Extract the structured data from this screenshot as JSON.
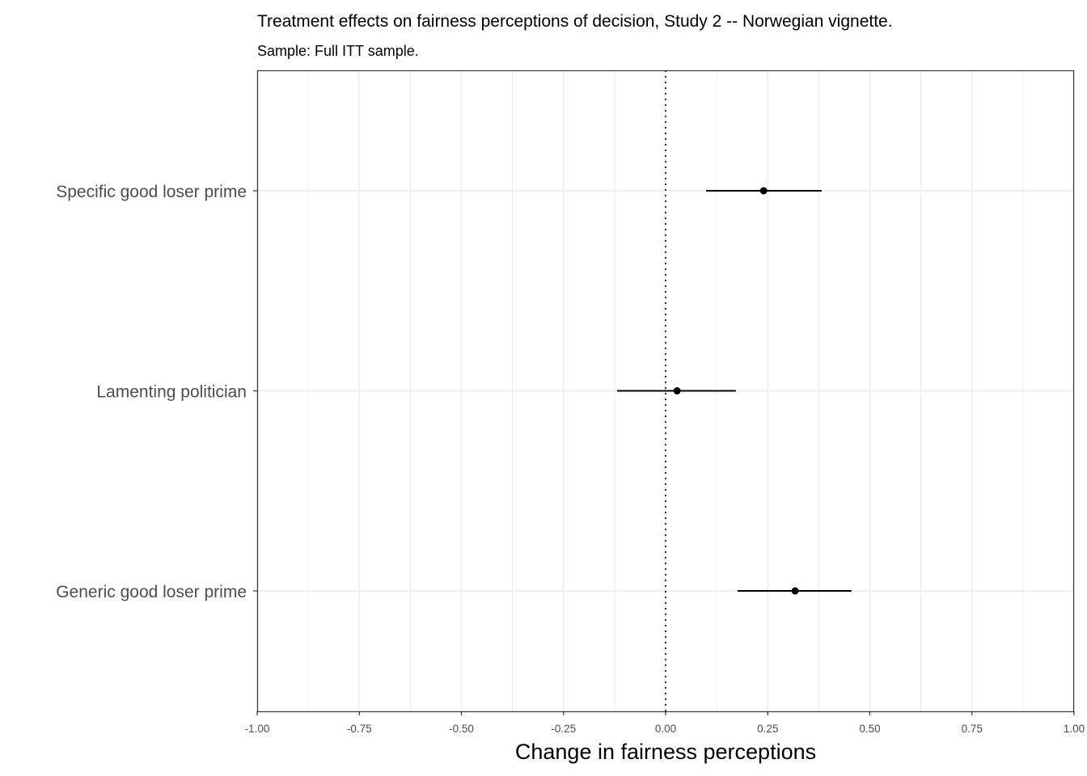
{
  "chart_data": {
    "type": "scatter",
    "subtype": "coefficient-plot-with-horizontal-error-bars",
    "title": "Treatment effects on fairness perceptions of decision, Study 2 -- Norwegian vignette.",
    "subtitle": "Sample: Full ITT sample.",
    "xlabel": "Change in fairness perceptions",
    "ylabel": "",
    "xlim": [
      -1.0,
      1.0
    ],
    "x_ticks": [
      "-1.00",
      "-0.75",
      "-0.50",
      "-0.25",
      "0.00",
      "0.25",
      "0.50",
      "0.75",
      "1.00"
    ],
    "x_tick_values": [
      -1.0,
      -0.75,
      -0.5,
      -0.25,
      0,
      0.25,
      0.5,
      0.75,
      1.0
    ],
    "reference_line": {
      "x": 0,
      "style": "dotted"
    },
    "grid": true,
    "categories": [
      "Specific good loser prime",
      "Lamenting politician",
      "Generic good loser prime"
    ],
    "series": [
      {
        "estimates": [
          0.24,
          0.028,
          0.317
        ],
        "lower": [
          0.099,
          -0.119,
          0.176
        ],
        "upper": [
          0.382,
          0.172,
          0.455
        ]
      }
    ],
    "colors": {
      "marks": "#000000",
      "grid": "#ebebeb",
      "axis": "#333333"
    }
  }
}
